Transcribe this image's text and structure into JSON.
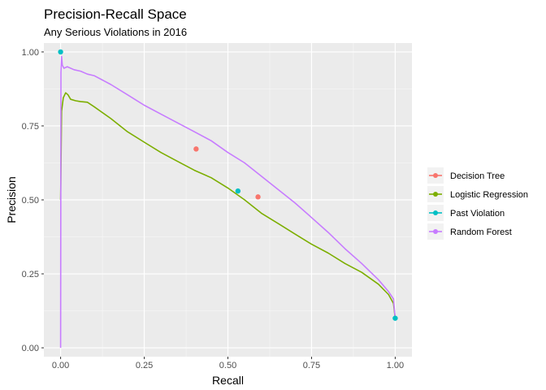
{
  "chart_data": {
    "type": "line",
    "title": "Precision-Recall Space",
    "subtitle": "Any Serious Violations in 2016",
    "xlabel": "Recall",
    "ylabel": "Precision",
    "xlim": [
      -0.05,
      1.05
    ],
    "ylim": [
      -0.03,
      1.03
    ],
    "x_ticks": [
      "0.00",
      "0.25",
      "0.50",
      "0.75",
      "1.00"
    ],
    "y_ticks": [
      "0.00",
      "0.25",
      "0.50",
      "0.75",
      "1.00"
    ],
    "grid": true,
    "legend_position": "right",
    "series": [
      {
        "name": "Decision Tree",
        "color": "#F8766D",
        "kind": "points",
        "points": [
          [
            0.405,
            0.672
          ],
          [
            0.59,
            0.51
          ]
        ]
      },
      {
        "name": "Logistic Regression",
        "color": "#7CAE00",
        "kind": "line",
        "points": [
          [
            0.0,
            0.5
          ],
          [
            0.003,
            0.8
          ],
          [
            0.008,
            0.845
          ],
          [
            0.015,
            0.862
          ],
          [
            0.022,
            0.855
          ],
          [
            0.03,
            0.84
          ],
          [
            0.045,
            0.835
          ],
          [
            0.06,
            0.832
          ],
          [
            0.08,
            0.83
          ],
          [
            0.1,
            0.815
          ],
          [
            0.125,
            0.795
          ],
          [
            0.15,
            0.775
          ],
          [
            0.2,
            0.73
          ],
          [
            0.25,
            0.695
          ],
          [
            0.3,
            0.66
          ],
          [
            0.35,
            0.63
          ],
          [
            0.4,
            0.6
          ],
          [
            0.45,
            0.575
          ],
          [
            0.5,
            0.54
          ],
          [
            0.55,
            0.5
          ],
          [
            0.6,
            0.455
          ],
          [
            0.65,
            0.42
          ],
          [
            0.7,
            0.385
          ],
          [
            0.75,
            0.35
          ],
          [
            0.8,
            0.32
          ],
          [
            0.85,
            0.285
          ],
          [
            0.9,
            0.255
          ],
          [
            0.95,
            0.215
          ],
          [
            0.98,
            0.18
          ],
          [
            0.995,
            0.15
          ],
          [
            1.0,
            0.1
          ]
        ]
      },
      {
        "name": "Past Violation",
        "color": "#00BFC4",
        "kind": "points",
        "points": [
          [
            0.0,
            1.0
          ],
          [
            0.53,
            0.53
          ],
          [
            1.0,
            0.1
          ]
        ]
      },
      {
        "name": "Random Forest",
        "color": "#C77CFF",
        "kind": "line",
        "points": [
          [
            0.0,
            0.0
          ],
          [
            0.001,
            0.93
          ],
          [
            0.003,
            0.985
          ],
          [
            0.005,
            0.955
          ],
          [
            0.01,
            0.945
          ],
          [
            0.02,
            0.95
          ],
          [
            0.04,
            0.94
          ],
          [
            0.06,
            0.935
          ],
          [
            0.08,
            0.925
          ],
          [
            0.1,
            0.92
          ],
          [
            0.125,
            0.905
          ],
          [
            0.15,
            0.89
          ],
          [
            0.2,
            0.855
          ],
          [
            0.25,
            0.82
          ],
          [
            0.3,
            0.79
          ],
          [
            0.35,
            0.76
          ],
          [
            0.4,
            0.73
          ],
          [
            0.45,
            0.7
          ],
          [
            0.5,
            0.66
          ],
          [
            0.55,
            0.625
          ],
          [
            0.6,
            0.58
          ],
          [
            0.65,
            0.535
          ],
          [
            0.7,
            0.49
          ],
          [
            0.75,
            0.44
          ],
          [
            0.8,
            0.39
          ],
          [
            0.85,
            0.335
          ],
          [
            0.9,
            0.285
          ],
          [
            0.95,
            0.23
          ],
          [
            0.98,
            0.19
          ],
          [
            0.995,
            0.165
          ],
          [
            1.0,
            0.1
          ]
        ]
      }
    ]
  }
}
